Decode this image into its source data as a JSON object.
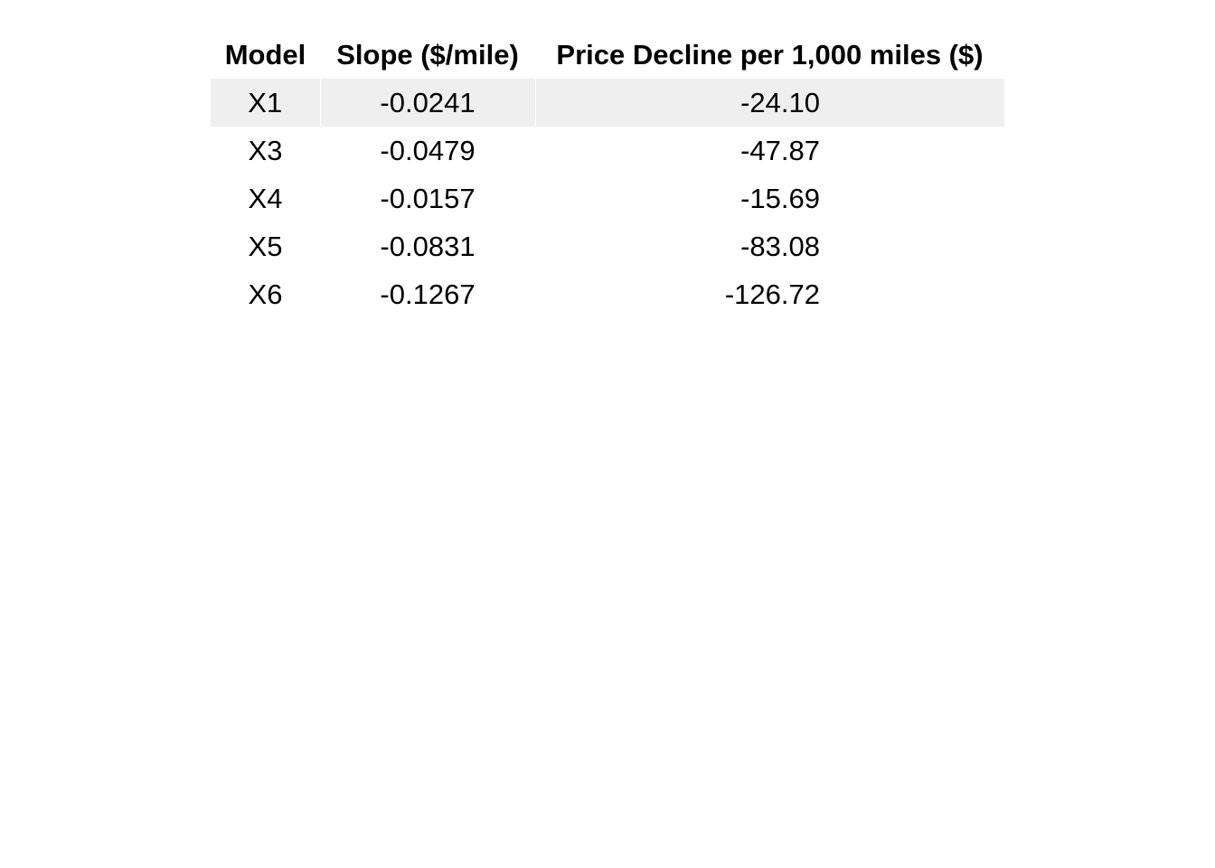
{
  "chart_data": {
    "type": "table",
    "columns": [
      "Model",
      "Slope ($/mile)",
      "Price Decline per 1,000 miles ($)"
    ],
    "rows": [
      {
        "model": "X1",
        "slope": "-0.0241",
        "decline": "-24.10"
      },
      {
        "model": "X3",
        "slope": "-0.0479",
        "decline": "-47.87"
      },
      {
        "model": "X4",
        "slope": "-0.0157",
        "decline": "-15.69"
      },
      {
        "model": "X5",
        "slope": "-0.0831",
        "decline": "-83.08"
      },
      {
        "model": "X6",
        "slope": "-0.1267",
        "decline": "-126.72"
      }
    ],
    "shaded_row_color": "#efefef"
  }
}
